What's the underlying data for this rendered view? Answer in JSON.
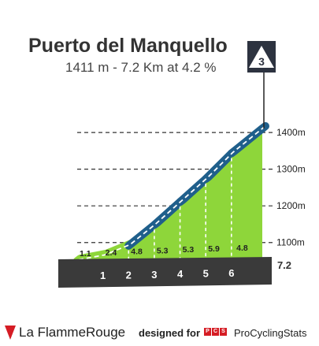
{
  "climb": {
    "name": "Puerto del Manquello",
    "summary": "1411 m - 7.2 Km at 4.2 %",
    "category": "3"
  },
  "footer": {
    "brand": "La FlammeRouge",
    "designed_for": "designed for",
    "pcs_letters": [
      "P",
      "C",
      "S"
    ],
    "site": "ProCyclingStats"
  },
  "chart_data": {
    "type": "area",
    "title": "Puerto del Manquello",
    "subtitle": "1411 m - 7.2 Km at 4.2 %",
    "x_unit": "km",
    "y_unit": "m",
    "ylim": [
      1050,
      1411
    ],
    "distance_ticks": [
      "1",
      "2",
      "3",
      "4",
      "5",
      "6"
    ],
    "end_distance_label": "7.2",
    "elevation_ticks": [
      {
        "value": 1400,
        "label": "1400m"
      },
      {
        "value": 1300,
        "label": "1300m"
      },
      {
        "value": 1200,
        "label": "1200m"
      },
      {
        "value": 1100,
        "label": "1100m"
      }
    ],
    "segments": [
      {
        "from_km": 0,
        "to_km": 1,
        "gradient": 1.1,
        "label": "1.1"
      },
      {
        "from_km": 1,
        "to_km": 2,
        "gradient": 2.4,
        "label": "2.4"
      },
      {
        "from_km": 2,
        "to_km": 3,
        "gradient": 4.8,
        "label": "4.8"
      },
      {
        "from_km": 3,
        "to_km": 4,
        "gradient": 5.3,
        "label": "5.3"
      },
      {
        "from_km": 4,
        "to_km": 5,
        "gradient": 5.3,
        "label": "5.3"
      },
      {
        "from_km": 5,
        "to_km": 6,
        "gradient": 5.9,
        "label": "5.9"
      },
      {
        "from_km": 6,
        "to_km": 7.2,
        "gradient": 4.8,
        "label": "4.8"
      }
    ],
    "colors": {
      "easy": "#8ed63a",
      "medium": "#1f5f8b",
      "grid": "#333333",
      "base": "#3a3a3a",
      "side": "#b8b0a4"
    }
  }
}
